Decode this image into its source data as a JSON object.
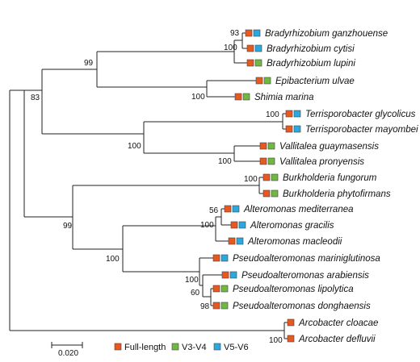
{
  "colors": {
    "full_length": "#E8581F",
    "v3_v4": "#70B83F",
    "v5_v6": "#29A9E0"
  },
  "taxa": [
    {
      "label": "Bradyrhizobium ganzhouense",
      "markers": [
        "full_length",
        "v5_v6"
      ]
    },
    {
      "label": "Bradyrhizobium cytisi",
      "markers": [
        "full_length",
        "v5_v6"
      ]
    },
    {
      "label": "Bradyrhizobium lupini",
      "markers": [
        "full_length",
        "v3_v4"
      ]
    },
    {
      "label": "Epibacterium ulvae",
      "markers": [
        "full_length",
        "v3_v4"
      ]
    },
    {
      "label": "Shimia marina",
      "markers": [
        "full_length",
        "v3_v4"
      ]
    },
    {
      "label": "Terrisporobacter glycolicus",
      "markers": [
        "full_length",
        "v5_v6"
      ]
    },
    {
      "label": "Terrisporobacter mayombei",
      "markers": [
        "full_length",
        "v5_v6"
      ]
    },
    {
      "label": "Vallitalea guaymasensis",
      "markers": [
        "full_length",
        "v3_v4"
      ]
    },
    {
      "label": "Vallitalea pronyensis",
      "markers": [
        "full_length",
        "v3_v4"
      ]
    },
    {
      "label": "Burkholderia fungorum",
      "markers": [
        "full_length",
        "v3_v4"
      ]
    },
    {
      "label": "Burkholderia phytofirmans",
      "markers": [
        "full_length",
        "v3_v4"
      ]
    },
    {
      "label": "Alteromonas mediterranea",
      "markers": [
        "full_length",
        "v5_v6"
      ]
    },
    {
      "label": "Alteromonas gracilis",
      "markers": [
        "full_length",
        "v5_v6"
      ]
    },
    {
      "label": "Alteromonas macleodii",
      "markers": [
        "full_length",
        "v5_v6"
      ]
    },
    {
      "label": "Pseudoalteromonas mariniglutinosa",
      "markers": [
        "full_length",
        "v5_v6"
      ]
    },
    {
      "label": "Pseudoalteromonas arabiensis",
      "markers": [
        "full_length",
        "v5_v6"
      ]
    },
    {
      "label": "Pseudoalteromonas lipolytica",
      "markers": [
        "full_length",
        "v3_v4"
      ]
    },
    {
      "label": "Pseudoalteromonas donghaensis",
      "markers": [
        "full_length",
        "v3_v4"
      ]
    },
    {
      "label": "Arcobacter cloacae",
      "markers": [
        "full_length"
      ]
    },
    {
      "label": "Arcobacter defluvii",
      "markers": [
        "full_length"
      ]
    }
  ],
  "bootstrap": {
    "brady_93": "93",
    "brady_100": "100",
    "alpha_99": "99",
    "roseo_100": "100",
    "top_83": "83",
    "terri_100": "100",
    "clostridia_100": "100",
    "valli_100": "100",
    "burk_100": "100",
    "alteromonas_56": "56",
    "alteromonas_100": "100",
    "altero_pseudo_100": "100",
    "pseudo_100": "100",
    "pseudo_60": "60",
    "pseudo_98": "98",
    "beta_gamma_99": "99",
    "arco_100": "100"
  },
  "scale_bar": {
    "label": "0.020"
  },
  "legend": [
    {
      "key": "full_length",
      "label": "Full-length"
    },
    {
      "key": "v3_v4",
      "label": "V3-V4"
    },
    {
      "key": "v5_v6",
      "label": "V5-V6"
    }
  ]
}
